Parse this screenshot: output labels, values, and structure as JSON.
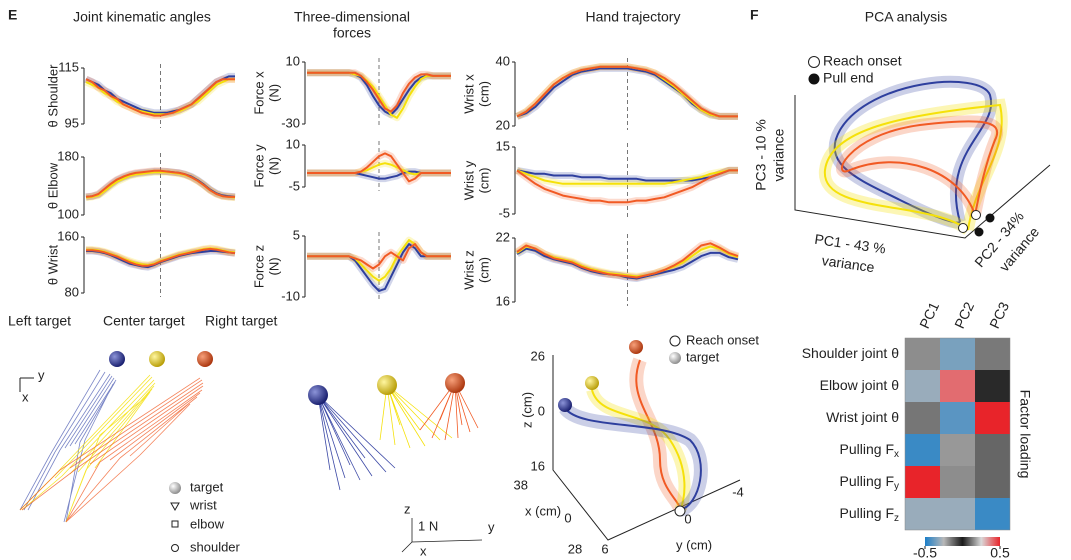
{
  "panel_labels": {
    "e": "E",
    "f": "F"
  },
  "titles": {
    "joint": "Joint kinematic angles",
    "forces": [
      "Three-dimensional",
      "forces"
    ],
    "hand": "Hand trajectory",
    "pca": "PCA analysis"
  },
  "legend": [
    {
      "name": "Left target",
      "color": "#2e3f9e"
    },
    {
      "name": "Center target",
      "color": "#f0d400"
    },
    {
      "name": "Right target",
      "color": "#f15a24"
    }
  ],
  "arm_diagram": {
    "axes": [
      "y",
      "x"
    ],
    "legend": [
      "target",
      "wrist",
      "elbow",
      "shoulder"
    ]
  },
  "force_diagram": {
    "axes": [
      "z",
      "y",
      "x"
    ],
    "scale": "1 N"
  },
  "trajectory_3d": {
    "legend": [
      "Reach onset",
      "target"
    ],
    "z_label": "z (cm)",
    "z_ticks": [
      "26",
      "0",
      "16"
    ],
    "x_label": "x (cm)",
    "x_ticks": [
      "38",
      "0",
      "28"
    ],
    "y_label": "y (cm)",
    "y_ticks": [
      "6",
      "0",
      "-4"
    ]
  },
  "pca_3d": {
    "legend": [
      "Reach onset",
      "Pull end"
    ],
    "pc3": [
      "PC3 - 10 %",
      "variance"
    ],
    "pc1": [
      "PC1 - 43 %",
      "variance"
    ],
    "pc2": [
      "PC2 - 34%",
      "variance"
    ]
  },
  "chart_data": [
    {
      "type": "line",
      "ylabel": [
        "θ Shoulder"
      ],
      "ylim": [
        95,
        115
      ],
      "yticks": [
        95,
        115
      ],
      "series": [
        {
          "color": "#2e3f9e",
          "values": [
            111,
            110,
            109,
            107,
            106,
            104,
            103,
            102,
            101,
            100,
            99.5,
            99,
            99,
            99,
            99.5,
            100,
            101,
            102,
            104,
            106,
            108,
            110,
            111,
            112,
            112
          ]
        },
        {
          "color": "#f5e10a",
          "values": [
            110,
            109,
            108,
            106,
            105,
            103,
            102,
            101,
            100,
            99.5,
            99,
            98.5,
            98.5,
            98.5,
            99,
            99.5,
            100.5,
            102,
            103,
            105,
            107,
            109,
            110,
            111,
            111
          ]
        },
        {
          "color": "#f15a24",
          "values": [
            111,
            110,
            108,
            107,
            105,
            104,
            102,
            101,
            100,
            99,
            98.5,
            98,
            98,
            98.5,
            99,
            100,
            101,
            102,
            104,
            106,
            108,
            110,
            111,
            111,
            111
          ]
        }
      ]
    },
    {
      "type": "line",
      "ylabel": [
        "θ Elbow"
      ],
      "ylim": [
        100,
        180
      ],
      "yticks": [
        100,
        180
      ],
      "series": [
        {
          "color": "#2e3f9e",
          "values": [
            125,
            126,
            128,
            135,
            142,
            148,
            152,
            155,
            157,
            158,
            159,
            160,
            160,
            160,
            159,
            158,
            156,
            153,
            148,
            142,
            135,
            130,
            127,
            126,
            125
          ]
        },
        {
          "color": "#f5e10a",
          "values": [
            124,
            125,
            127,
            133,
            140,
            146,
            150,
            154,
            156,
            157,
            158,
            159,
            159,
            159,
            158,
            157,
            155,
            152,
            147,
            141,
            134,
            129,
            126,
            125,
            124
          ]
        },
        {
          "color": "#f15a24",
          "values": [
            125,
            126,
            129,
            136,
            143,
            149,
            153,
            156,
            158,
            159,
            160,
            161,
            161,
            160,
            159,
            158,
            156,
            152,
            147,
            141,
            134,
            129,
            126,
            125,
            125
          ]
        }
      ]
    },
    {
      "type": "line",
      "ylabel": [
        "θ Wrist"
      ],
      "ylim": [
        80,
        160
      ],
      "yticks": [
        80,
        160
      ],
      "series": [
        {
          "color": "#2e3f9e",
          "values": [
            140,
            140,
            139,
            137,
            134,
            130,
            126,
            122,
            120,
            118,
            117,
            120,
            124,
            127,
            130,
            133,
            135,
            137,
            138,
            139,
            140,
            140,
            139,
            138,
            137
          ]
        },
        {
          "color": "#f5e10a",
          "values": [
            142,
            142,
            141,
            139,
            136,
            133,
            129,
            126,
            123,
            121,
            120,
            122,
            126,
            129,
            132,
            135,
            137,
            139,
            141,
            143,
            144,
            143,
            141,
            139,
            138
          ]
        },
        {
          "color": "#f15a24",
          "values": [
            141,
            141,
            140,
            138,
            135,
            132,
            128,
            124,
            121,
            119,
            119,
            121,
            125,
            128,
            131,
            134,
            136,
            138,
            140,
            142,
            143,
            142,
            140,
            138,
            137
          ]
        }
      ]
    },
    {
      "type": "line",
      "ylabel": [
        "Force x",
        "(N)"
      ],
      "ylim": [
        -30,
        10
      ],
      "yticks": [
        -30,
        10
      ],
      "series": [
        {
          "color": "#2e3f9e",
          "values": [
            3,
            3,
            3,
            3,
            3,
            3,
            3,
            3,
            2,
            0,
            -5,
            -12,
            -18,
            -22,
            -24,
            -20,
            -14,
            -8,
            -3,
            0,
            1,
            1,
            1,
            1,
            1
          ]
        },
        {
          "color": "#f5e10a",
          "values": [
            3,
            3,
            3,
            3,
            3,
            3,
            3,
            3,
            2,
            1,
            -2,
            -6,
            -12,
            -18,
            -24,
            -26,
            -20,
            -12,
            -6,
            -1,
            1,
            1,
            1,
            1,
            1
          ]
        },
        {
          "color": "#f15a24",
          "values": [
            3,
            3,
            3,
            3,
            3,
            3,
            3,
            3,
            3,
            1,
            -3,
            -8,
            -14,
            -20,
            -22,
            -18,
            -10,
            -4,
            0,
            2,
            2,
            1,
            1,
            1,
            1
          ]
        }
      ]
    },
    {
      "type": "line",
      "ylabel": [
        "Force y",
        "(N)"
      ],
      "ylim": [
        -5,
        10
      ],
      "yticks": [
        -5,
        10
      ],
      "series": [
        {
          "color": "#2e3f9e",
          "values": [
            0,
            0,
            0,
            0,
            0,
            0,
            0,
            0,
            0,
            -0.5,
            -1,
            -1.5,
            -2,
            -2,
            -1.5,
            -1,
            0,
            0.5,
            0.5,
            0,
            0,
            0,
            0,
            0,
            0
          ]
        },
        {
          "color": "#f5e10a",
          "values": [
            0,
            0,
            0,
            0,
            0,
            0,
            0,
            0,
            0,
            0.5,
            1,
            2,
            3,
            3.5,
            3,
            2,
            1,
            0,
            -0.5,
            0,
            0,
            0,
            0,
            0,
            0
          ]
        },
        {
          "color": "#f15a24",
          "values": [
            0,
            0,
            0,
            0,
            0,
            0,
            0,
            0,
            0,
            0.5,
            2,
            4,
            6,
            7,
            6,
            3,
            0,
            -3,
            -2,
            0,
            0,
            0,
            0,
            0,
            0
          ]
        }
      ]
    },
    {
      "type": "line",
      "ylabel": [
        "Force z",
        "(N)"
      ],
      "ylim": [
        -10,
        5
      ],
      "yticks": [
        -10,
        5
      ],
      "series": [
        {
          "color": "#2e3f9e",
          "values": [
            0,
            0,
            0,
            0,
            0,
            0,
            0,
            0,
            -1,
            -3,
            -5,
            -7,
            -8.5,
            -8,
            -5,
            -2,
            1,
            3,
            2,
            0,
            0,
            0,
            0,
            0,
            0
          ]
        },
        {
          "color": "#f5e10a",
          "values": [
            0,
            0,
            0,
            0,
            0,
            0,
            0,
            0,
            -0.5,
            -2,
            -3.5,
            -5,
            -6,
            -5,
            -3,
            0,
            2,
            4,
            3,
            1,
            0,
            0,
            0,
            0,
            0
          ]
        },
        {
          "color": "#f15a24",
          "values": [
            0,
            0,
            0,
            0,
            0,
            0,
            0,
            0,
            -0.5,
            -1,
            -2,
            -3,
            -2,
            0,
            1,
            0,
            -1,
            2,
            3,
            1,
            0,
            0,
            0,
            0,
            0
          ]
        }
      ]
    },
    {
      "type": "line",
      "ylabel": [
        "Wrist x",
        "(cm)"
      ],
      "ylim": [
        20,
        40
      ],
      "yticks": [
        20,
        40
      ],
      "series": [
        {
          "color": "#2e3f9e",
          "values": [
            23,
            24,
            26,
            29,
            32,
            34,
            36,
            37,
            37.5,
            38,
            38,
            38,
            38,
            37.5,
            37,
            36,
            34,
            32,
            30,
            27,
            25,
            23.5,
            23,
            23,
            23
          ]
        },
        {
          "color": "#f5e10a",
          "values": [
            23,
            24.5,
            27,
            30,
            33,
            35,
            36.5,
            37.5,
            38,
            38.5,
            38.5,
            38.5,
            38.5,
            38,
            37.5,
            36.5,
            34.5,
            32.5,
            30,
            27.5,
            25,
            23.5,
            23,
            23,
            23
          ]
        },
        {
          "color": "#f15a24",
          "values": [
            23,
            24.5,
            27,
            30,
            33,
            35,
            36.5,
            37.5,
            38,
            38.5,
            38.5,
            38.5,
            38.5,
            38,
            37.5,
            36.5,
            35,
            33,
            30.5,
            28,
            25.5,
            24,
            23,
            23,
            23
          ]
        }
      ]
    },
    {
      "type": "line",
      "ylabel": [
        "Wrist  y",
        "(cm)"
      ],
      "ylim": [
        -5,
        15
      ],
      "yticks": [
        -5,
        15
      ],
      "series": [
        {
          "color": "#2e3f9e",
          "values": [
            8,
            7.5,
            7,
            7,
            6.5,
            6.5,
            6.5,
            6,
            6,
            6,
            5.5,
            5.5,
            5.5,
            5.5,
            5,
            5,
            5,
            5,
            5,
            5,
            5.5,
            6,
            7,
            8,
            8
          ]
        },
        {
          "color": "#f5e10a",
          "values": [
            8,
            7,
            6,
            5,
            4.5,
            4,
            4,
            4,
            4,
            4,
            4,
            4,
            4,
            4,
            4,
            4,
            4,
            4.5,
            5,
            5.5,
            6,
            7,
            7.5,
            8,
            8
          ]
        },
        {
          "color": "#f15a24",
          "values": [
            8,
            6,
            4,
            2.5,
            1.5,
            0.5,
            0,
            -0.5,
            -1,
            -1,
            -1.5,
            -1.5,
            -1.5,
            -1,
            -1,
            -0.5,
            0,
            1,
            2,
            3,
            4.5,
            6,
            7,
            8,
            8
          ]
        }
      ]
    },
    {
      "type": "line",
      "ylabel": [
        "Wrist z",
        "(cm)"
      ],
      "ylim": [
        16,
        22
      ],
      "yticks": [
        16,
        22
      ],
      "series": [
        {
          "color": "#2e3f9e",
          "values": [
            20.5,
            21,
            20.8,
            20.3,
            20,
            19.8,
            19.6,
            19.2,
            18.9,
            18.7,
            18.6,
            18.5,
            18.3,
            18.2,
            18.4,
            18.6,
            18.8,
            19,
            19.3,
            19.8,
            20.3,
            20.6,
            20.6,
            20.2,
            20
          ]
        },
        {
          "color": "#f5e10a",
          "values": [
            20.6,
            21.2,
            21,
            20.5,
            20.2,
            20,
            19.8,
            19.4,
            19.1,
            18.9,
            18.7,
            18.6,
            18.5,
            18.4,
            18.5,
            18.7,
            19,
            19.3,
            19.7,
            20.3,
            20.9,
            21.2,
            21,
            20.5,
            20.2
          ]
        },
        {
          "color": "#f15a24",
          "values": [
            20.7,
            21.3,
            21,
            20.5,
            20.1,
            19.9,
            19.7,
            19.3,
            19,
            18.8,
            18.6,
            18.5,
            18.4,
            18.3,
            18.5,
            18.7,
            19,
            19.4,
            19.9,
            20.6,
            21.3,
            21.5,
            21.1,
            20.6,
            20.3
          ]
        }
      ]
    },
    {
      "type": "heatmap",
      "x": [
        "PC1",
        "PC2",
        "PC3"
      ],
      "categories": [
        {
          "text": "Shoulder joint θ"
        },
        {
          "text": "Elbow joint θ"
        },
        {
          "text": "Wrist joint θ"
        },
        {
          "text": "Pulling F",
          "sub": "x"
        },
        {
          "text": "Pulling F",
          "sub": "y"
        },
        {
          "text": "Pulling F",
          "sub": "z"
        }
      ],
      "values": [
        [
          0.15,
          -0.35,
          -0.15
        ],
        [
          -0.3,
          0.4,
          0.02
        ],
        [
          0.12,
          -0.4,
          0.5
        ],
        [
          -0.45,
          -0.2,
          0.1
        ],
        [
          0.5,
          0.15,
          0.1
        ],
        [
          -0.3,
          -0.3,
          -0.45
        ]
      ],
      "colors": [
        "#1b7ec8",
        "#b8b8b8",
        "#1a1a1a",
        "#d9d9d9",
        "#e8242a"
      ],
      "clim": [
        -0.5,
        0.5
      ],
      "cticks": [
        -0.5,
        0.5
      ],
      "colorbar_label": "Factor loading"
    }
  ]
}
